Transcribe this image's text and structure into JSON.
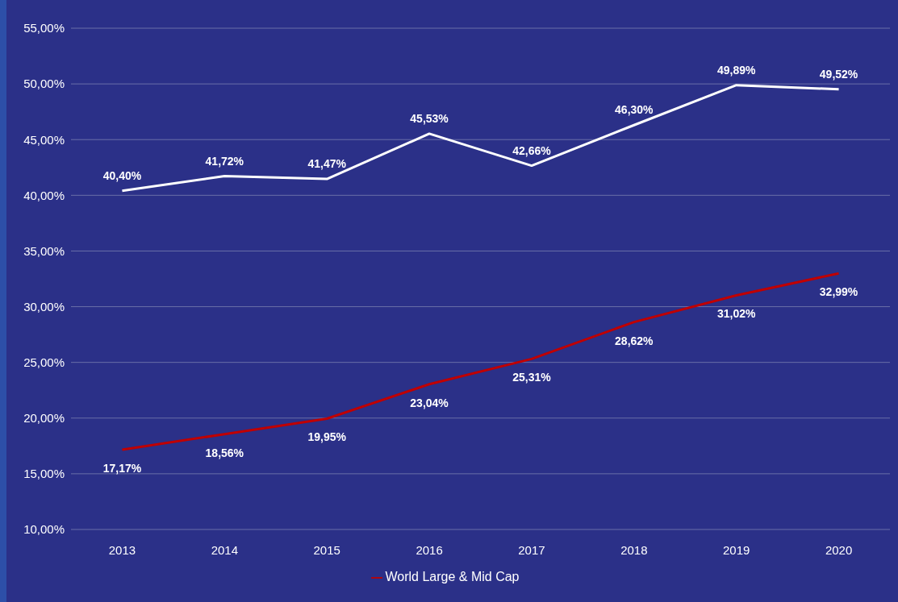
{
  "chart_data": {
    "type": "line",
    "categories": [
      "2013",
      "2014",
      "2015",
      "2016",
      "2017",
      "2018",
      "2019",
      "2020"
    ],
    "series": [
      {
        "color": "#ffffff",
        "values": [
          40.4,
          41.72,
          41.47,
          45.53,
          42.66,
          46.3,
          49.89,
          49.52
        ],
        "value_labels": [
          "40,40%",
          "41,72%",
          "41,47%",
          "45,53%",
          "42,66%",
          "46,30%",
          "49,89%",
          "49,52%"
        ]
      },
      {
        "name": "World Large & Mid Cap",
        "color": "#c00000",
        "values": [
          17.17,
          18.56,
          19.95,
          23.04,
          25.31,
          28.62,
          31.02,
          32.99
        ],
        "value_labels": [
          "17,17%",
          "18,56%",
          "19,95%",
          "23,04%",
          "25,31%",
          "28,62%",
          "31,02%",
          "32,99%"
        ]
      }
    ],
    "ylim": [
      10,
      55
    ],
    "yticks": [
      {
        "value": 10,
        "label": "10,00%"
      },
      {
        "value": 15,
        "label": "15,00%"
      },
      {
        "value": 20,
        "label": "20,00%"
      },
      {
        "value": 25,
        "label": "25,00%"
      },
      {
        "value": 30,
        "label": "30,00%"
      },
      {
        "value": 35,
        "label": "35,00%"
      },
      {
        "value": 40,
        "label": "40,00%"
      },
      {
        "value": 45,
        "label": "45,00%"
      },
      {
        "value": 50,
        "label": "50,00%"
      },
      {
        "value": 55,
        "label": "55,00%"
      }
    ],
    "grid": "y",
    "legend": "bottom",
    "marker": "none",
    "line_style": "solid"
  }
}
